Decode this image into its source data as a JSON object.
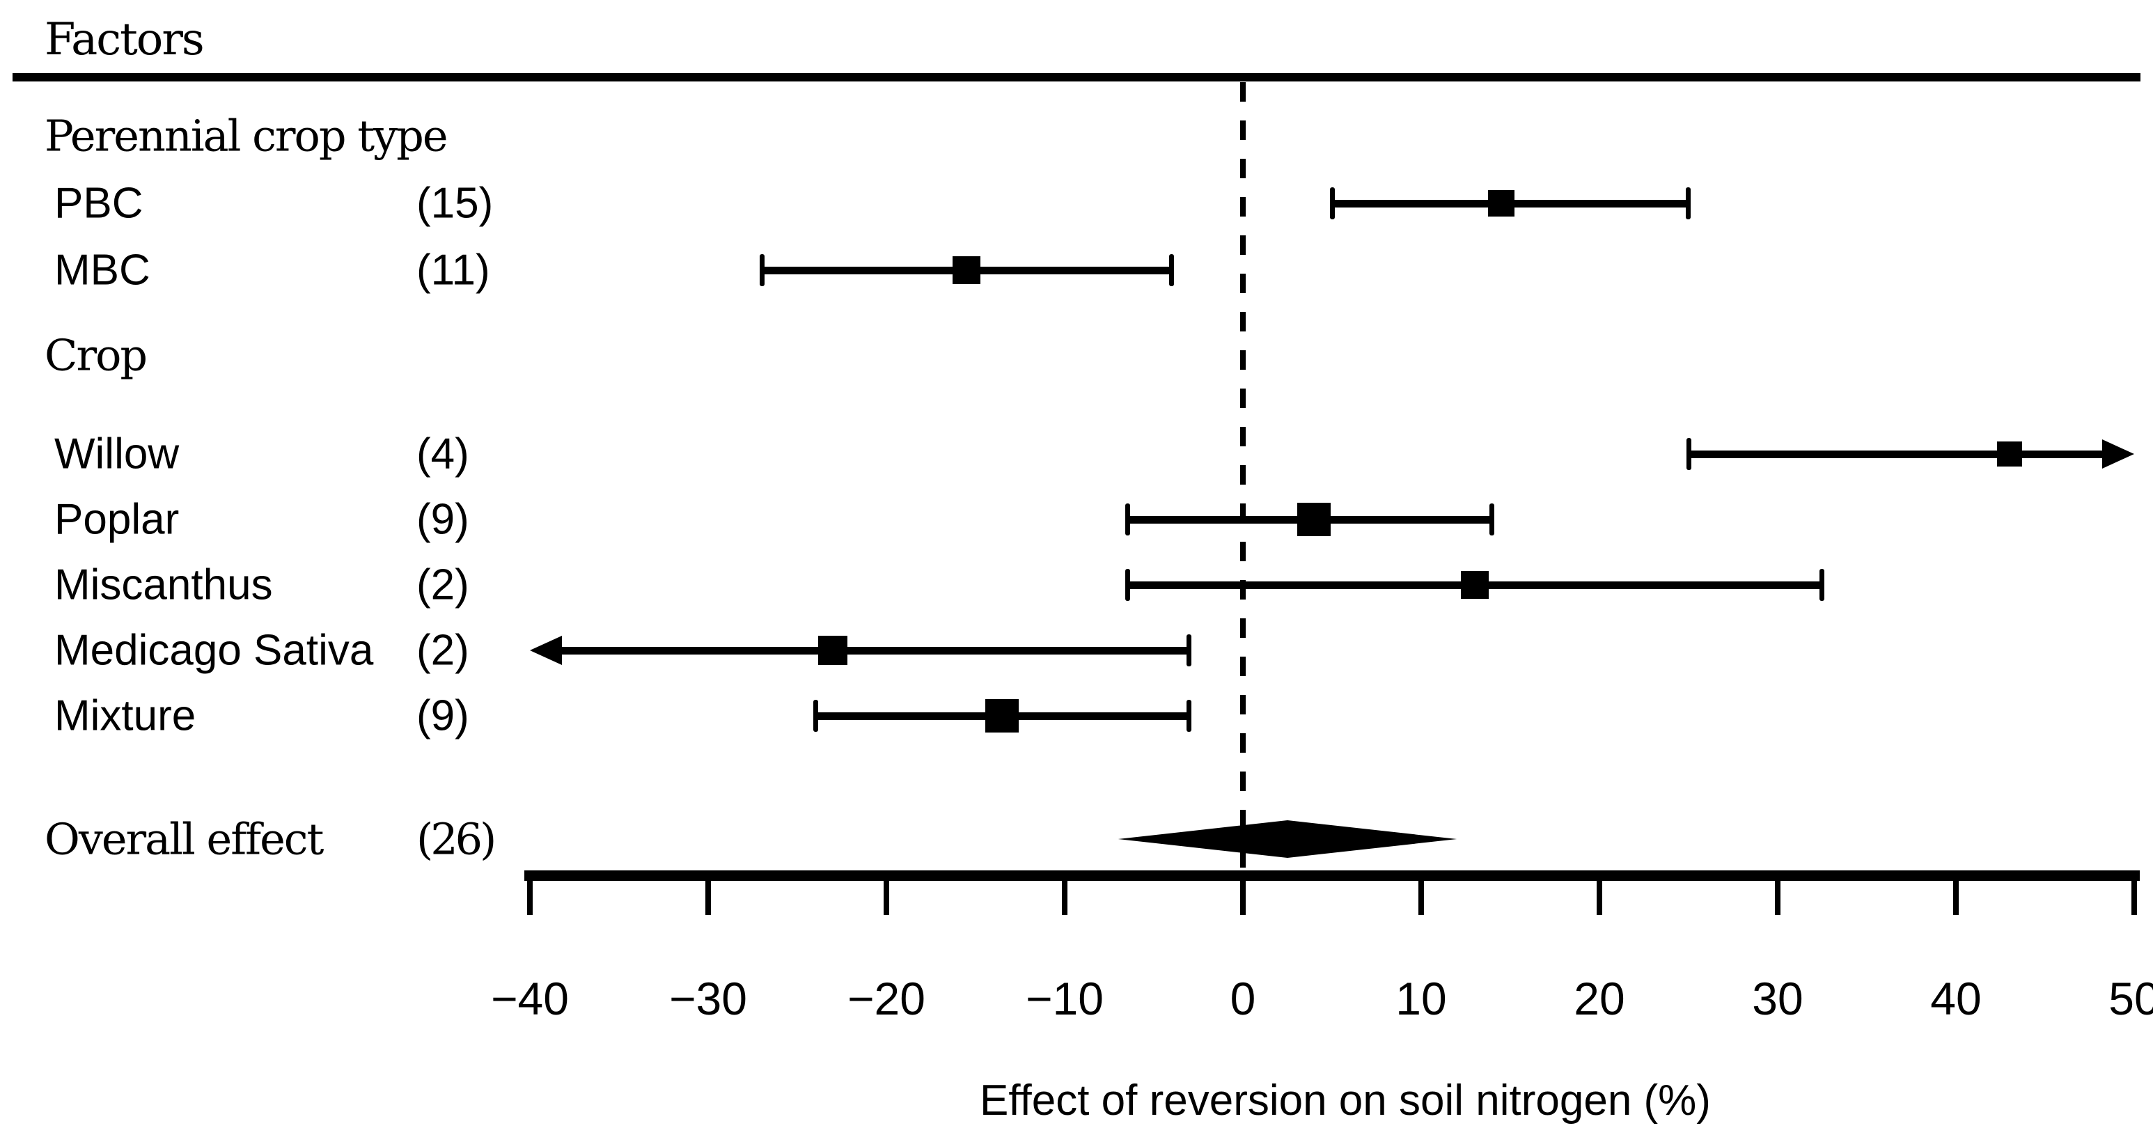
{
  "chart_data": {
    "type": "forest",
    "title": "Factors",
    "xlabel": "Effect of reversion on soil nitrogen (%)",
    "xlim": [
      -40,
      50
    ],
    "xticks": [
      -40,
      -30,
      -20,
      -10,
      0,
      10,
      20,
      30,
      40,
      50
    ],
    "zero_reference_line": 0,
    "axis_color": "#000000",
    "marker_color": "#000000",
    "groups": [
      {
        "heading": "Perennial crop type",
        "rows": [
          {
            "label": "PBC",
            "n_label": "(15)",
            "estimate": 14.5,
            "ci_low": 5,
            "ci_high": 25,
            "marker_size": 38
          },
          {
            "label": "MBC",
            "n_label": "(11)",
            "estimate": -15.5,
            "ci_low": -27,
            "ci_high": -4,
            "marker_size": 40
          }
        ]
      },
      {
        "heading": "Crop",
        "rows": [
          {
            "label": "Willow",
            "n_label": "(4)",
            "estimate": 43,
            "ci_low": 25,
            "ci_high": 50,
            "ci_high_arrow": true,
            "marker_size": 36
          },
          {
            "label": "Poplar",
            "n_label": "(9)",
            "estimate": 4,
            "ci_low": -6.5,
            "ci_high": 14,
            "marker_size": 48
          },
          {
            "label": "Miscanthus",
            "n_label": "(2)",
            "estimate": 13,
            "ci_low": -6.5,
            "ci_high": 32.5,
            "marker_size": 40
          },
          {
            "label": "Medicago Sativa",
            "n_label": "(2)",
            "estimate": -23,
            "ci_low": -40,
            "ci_low_arrow": true,
            "ci_high": -3,
            "marker_size": 42
          },
          {
            "label": "Mixture",
            "n_label": "(9)",
            "estimate": -13.5,
            "ci_low": -24,
            "ci_high": -3,
            "marker_size": 48
          }
        ]
      }
    ],
    "overall": {
      "label": "Overall effect",
      "n_label": "(26)",
      "estimate": 2.5,
      "ci_low": -7,
      "ci_high": 12
    }
  }
}
